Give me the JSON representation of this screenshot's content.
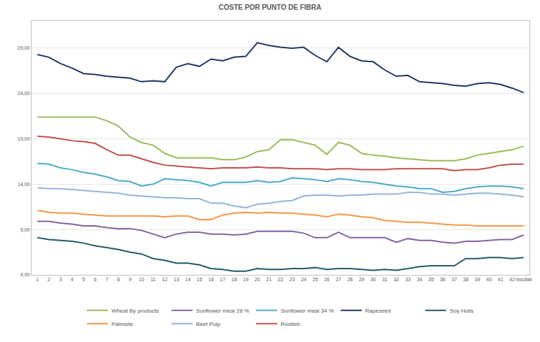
{
  "chart_data": {
    "type": "line",
    "title": "COSTE POR PUNTO DE FIBRA",
    "categories": [
      "1",
      "2",
      "3",
      "4",
      "5",
      "6",
      "7",
      "8",
      "9",
      "10",
      "11",
      "12",
      "13",
      "14",
      "15",
      "16",
      "17",
      "18",
      "19",
      "20",
      "21",
      "22",
      "23",
      "24",
      "25",
      "26",
      "27",
      "28",
      "29",
      "30",
      "31",
      "32",
      "33",
      "34",
      "35",
      "36",
      "37",
      "38",
      "39",
      "40",
      "41",
      "42",
      "resultat"
    ],
    "ylim": [
      4,
      32
    ],
    "yticks": [
      {
        "value": 4,
        "label": "4,00"
      },
      {
        "value": 9,
        "label": "9,00"
      },
      {
        "value": 14,
        "label": "14,00"
      },
      {
        "value": 19,
        "label": "19,00"
      },
      {
        "value": 24,
        "label": "24,00"
      },
      {
        "value": 29,
        "label": "29,00"
      }
    ],
    "grid": true,
    "legend": "bottom",
    "series": [
      {
        "name": "Wheat By products",
        "color": "#9bbb59",
        "values": [
          21.4,
          21.4,
          21.4,
          21.4,
          21.4,
          21.4,
          21.0,
          20.4,
          19.2,
          18.6,
          18.3,
          17.4,
          16.9,
          16.9,
          16.9,
          16.9,
          16.7,
          16.7,
          17.0,
          17.6,
          17.8,
          18.9,
          18.9,
          18.6,
          18.3,
          17.3,
          18.6,
          18.3,
          17.4,
          17.2,
          17.1,
          16.9,
          16.8,
          16.7,
          16.6,
          16.6,
          16.6,
          16.8,
          17.2,
          17.4,
          17.6,
          17.8,
          18.2
        ]
      },
      {
        "name": "Sunflower meal 28 %",
        "color": "#8064a2",
        "values": [
          9.9,
          9.9,
          9.7,
          9.6,
          9.4,
          9.4,
          9.2,
          9.1,
          9.1,
          8.9,
          8.5,
          8.1,
          8.5,
          8.7,
          8.7,
          8.5,
          8.5,
          8.4,
          8.5,
          8.8,
          8.8,
          8.8,
          8.8,
          8.6,
          8.1,
          8.1,
          8.7,
          8.1,
          8.1,
          8.1,
          8.1,
          7.6,
          8.0,
          7.8,
          7.8,
          7.6,
          7.5,
          7.7,
          7.7,
          7.8,
          7.9,
          7.9,
          8.4
        ]
      },
      {
        "name": "Sunflower meal 34 %",
        "color": "#4bacc6",
        "values": [
          16.3,
          16.2,
          15.8,
          15.6,
          15.3,
          15.1,
          14.8,
          14.4,
          14.3,
          13.8,
          14.0,
          14.6,
          14.5,
          14.4,
          14.2,
          13.8,
          14.2,
          14.2,
          14.2,
          14.4,
          14.2,
          14.3,
          14.7,
          14.6,
          14.5,
          14.3,
          14.6,
          14.5,
          14.3,
          14.2,
          14.0,
          13.8,
          13.7,
          13.5,
          13.5,
          13.1,
          13.2,
          13.5,
          13.7,
          13.8,
          13.8,
          13.7,
          13.5
        ]
      },
      {
        "name": "Rapeseed",
        "color": "#1f3864",
        "values": [
          28.3,
          28.0,
          27.3,
          26.8,
          26.2,
          26.1,
          25.9,
          25.8,
          25.7,
          25.3,
          25.4,
          25.3,
          26.9,
          27.3,
          27.0,
          27.8,
          27.6,
          28.0,
          28.1,
          29.6,
          29.3,
          29.1,
          29.0,
          29.1,
          28.2,
          27.5,
          29.1,
          28.1,
          27.6,
          27.5,
          26.6,
          25.9,
          26.0,
          25.3,
          25.2,
          25.1,
          24.9,
          24.8,
          25.1,
          25.2,
          25.0,
          24.6,
          24.1
        ]
      },
      {
        "name": "Soy Hulls",
        "color": "#215968",
        "values": [
          8.1,
          7.9,
          7.8,
          7.7,
          7.5,
          7.2,
          7.0,
          6.8,
          6.5,
          6.3,
          5.8,
          5.6,
          5.3,
          5.3,
          5.1,
          4.7,
          4.6,
          4.4,
          4.4,
          4.7,
          4.6,
          4.6,
          4.7,
          4.7,
          4.8,
          4.6,
          4.7,
          4.7,
          4.6,
          4.5,
          4.6,
          4.5,
          4.7,
          4.9,
          5.0,
          5.0,
          5.0,
          5.8,
          5.8,
          5.9,
          5.9,
          5.8,
          5.9
        ]
      },
      {
        "name": "Palmiste",
        "color": "#f79646",
        "values": [
          11.1,
          10.9,
          10.8,
          10.8,
          10.7,
          10.6,
          10.5,
          10.5,
          10.5,
          10.5,
          10.5,
          10.4,
          10.5,
          10.5,
          10.1,
          10.1,
          10.6,
          10.8,
          10.9,
          10.8,
          10.9,
          10.8,
          10.8,
          10.7,
          10.6,
          10.4,
          10.7,
          10.6,
          10.4,
          10.3,
          10.0,
          9.9,
          9.8,
          9.8,
          9.7,
          9.6,
          9.5,
          9.5,
          9.4,
          9.4,
          9.4,
          9.4,
          9.4
        ]
      },
      {
        "name": "Beet Pulp",
        "color": "#95b3d7",
        "values": [
          13.6,
          13.5,
          13.5,
          13.4,
          13.3,
          13.2,
          13.1,
          13.0,
          12.8,
          12.7,
          12.6,
          12.5,
          12.5,
          12.4,
          12.4,
          11.9,
          11.9,
          11.6,
          11.4,
          11.8,
          11.9,
          12.1,
          12.2,
          12.7,
          12.8,
          12.8,
          12.7,
          12.8,
          12.8,
          12.9,
          12.9,
          12.9,
          13.1,
          13.1,
          12.9,
          12.9,
          12.8,
          12.9,
          13.0,
          13.0,
          12.9,
          12.8,
          12.6
        ]
      },
      {
        "name": "Rootleb",
        "color": "#c0504d",
        "values": [
          19.3,
          19.2,
          19.0,
          18.8,
          18.7,
          18.5,
          17.8,
          17.2,
          17.2,
          16.8,
          16.4,
          16.1,
          16.0,
          15.9,
          15.8,
          15.7,
          15.8,
          15.8,
          15.8,
          15.9,
          15.8,
          15.8,
          15.7,
          15.7,
          15.7,
          15.6,
          15.7,
          15.7,
          15.6,
          15.6,
          15.6,
          15.7,
          15.7,
          15.7,
          15.7,
          15.7,
          15.5,
          15.6,
          15.6,
          15.8,
          16.1,
          16.2,
          16.2
        ]
      }
    ]
  }
}
